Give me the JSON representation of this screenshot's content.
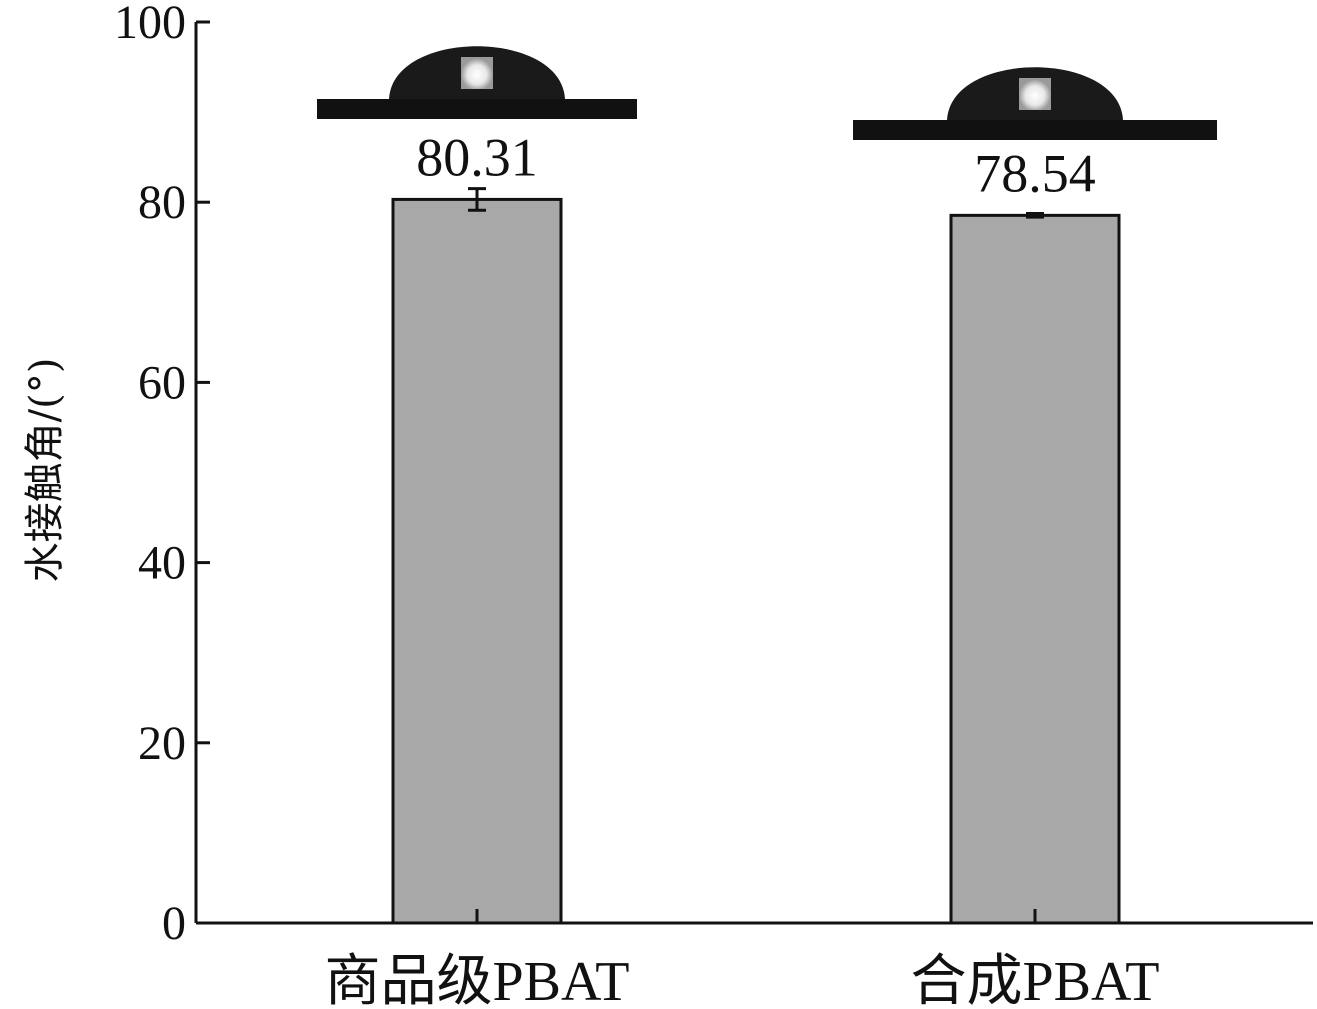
{
  "chart_data": {
    "type": "bar",
    "categories": [
      "商品级PBAT",
      "合成PBAT"
    ],
    "values": [
      80.31,
      78.54
    ],
    "errors": [
      1.2,
      0.2
    ],
    "value_labels": [
      "80.31",
      "78.54"
    ],
    "ylabel": "水接触角/(°)",
    "ylim": [
      0,
      100
    ],
    "yticks": [
      0,
      20,
      40,
      60,
      80,
      100
    ],
    "ytick_labels": [
      "0",
      "20",
      "40",
      "60",
      "80",
      "100"
    ],
    "grid": false,
    "legend": "none",
    "bar_color": "#a8a8a8",
    "axis_color": "#111111",
    "inset_images": [
      "water-droplet-photo",
      "water-droplet-photo"
    ]
  }
}
